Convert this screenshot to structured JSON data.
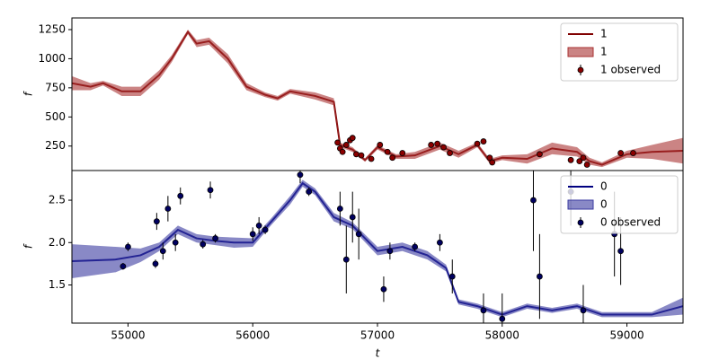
{
  "chart_data": [
    {
      "type": "line",
      "ylabel": "f",
      "xlim": [
        54550,
        59450
      ],
      "ylim": [
        40,
        1350
      ],
      "yticks": [
        250,
        500,
        750,
        1000,
        1250
      ],
      "legend": "upper right",
      "series": [
        {
          "name": "1",
          "color": "#800000",
          "x": [
            54550,
            54700,
            54800,
            54950,
            55100,
            55250,
            55350,
            55480,
            55550,
            55650,
            55800,
            55950,
            56100,
            56200,
            56300,
            56500,
            56650,
            56700,
            56800,
            56900,
            57000,
            57150,
            57300,
            57500,
            57650,
            57800,
            57900,
            58000,
            58200,
            58400,
            58600,
            58700,
            58800,
            59000,
            59200,
            59450
          ],
          "values": [
            790,
            760,
            790,
            720,
            720,
            860,
            1000,
            1230,
            1130,
            1150,
            1000,
            760,
            690,
            660,
            720,
            680,
            630,
            260,
            220,
            130,
            240,
            160,
            170,
            250,
            180,
            260,
            120,
            150,
            140,
            230,
            200,
            120,
            90,
            180,
            200,
            210
          ]
        },
        {
          "name": "1",
          "color": "#a83232",
          "x": [
            54550,
            54700,
            54800,
            54950,
            55100,
            55250,
            55350,
            55480,
            55550,
            55650,
            55800,
            55950,
            56100,
            56200,
            56300,
            56500,
            56650,
            56700,
            56800,
            56900,
            57000,
            57150,
            57300,
            57500,
            57650,
            57800,
            57900,
            58000,
            58200,
            58400,
            58600,
            58700,
            58800,
            59000,
            59200,
            59450
          ],
          "lower": [
            730,
            730,
            770,
            680,
            680,
            820,
            970,
            1210,
            1100,
            1120,
            960,
            730,
            670,
            640,
            700,
            650,
            600,
            240,
            200,
            115,
            220,
            140,
            140,
            220,
            150,
            240,
            100,
            130,
            100,
            180,
            160,
            90,
            70,
            150,
            140,
            100
          ],
          "upper": [
            850,
            790,
            810,
            760,
            760,
            900,
            1030,
            1250,
            1160,
            1180,
            1040,
            790,
            710,
            680,
            740,
            710,
            660,
            280,
            240,
            145,
            260,
            180,
            200,
            280,
            210,
            280,
            140,
            170,
            180,
            280,
            240,
            150,
            110,
            210,
            260,
            320
          ]
        },
        {
          "name": "1 observed",
          "color": "#8b0000",
          "x": [
            56680,
            56700,
            56720,
            56750,
            56780,
            56800,
            56830,
            56870,
            56950,
            57020,
            57080,
            57120,
            57200,
            57430,
            57480,
            57530,
            57580,
            57800,
            57850,
            57900,
            57920,
            58300,
            58550,
            58620,
            58650,
            58680,
            58950,
            59050
          ],
          "values": [
            280,
            230,
            200,
            260,
            300,
            320,
            180,
            170,
            140,
            260,
            200,
            150,
            190,
            260,
            270,
            240,
            190,
            270,
            290,
            150,
            110,
            180,
            130,
            120,
            150,
            90,
            190,
            190
          ],
          "errors": [
            20,
            20,
            20,
            20,
            20,
            20,
            20,
            20,
            20,
            20,
            20,
            20,
            20,
            20,
            20,
            20,
            20,
            20,
            20,
            20,
            20,
            20,
            20,
            20,
            20,
            20,
            20,
            20
          ]
        }
      ]
    },
    {
      "type": "line",
      "ylabel": "f",
      "xlabel": "t",
      "xlim": [
        54550,
        59450
      ],
      "xticks": [
        55000,
        56000,
        57000,
        58000,
        59000
      ],
      "ylim": [
        1.05,
        2.85
      ],
      "yticks": [
        {
          "value": 1.5,
          "label": "1.5"
        },
        {
          "value": 2.0,
          "label": "2.0"
        },
        {
          "value": 2.5,
          "label": "2.5"
        }
      ],
      "legend": "upper right",
      "series": [
        {
          "name": "0",
          "color": "#000080",
          "x": [
            54550,
            54900,
            55100,
            55250,
            55400,
            55550,
            55700,
            55850,
            56000,
            56150,
            56300,
            56400,
            56500,
            56650,
            56800,
            57000,
            57200,
            57400,
            57550,
            57650,
            57800,
            58000,
            58200,
            58400,
            58600,
            58800,
            59000,
            59200,
            59450
          ],
          "values": [
            1.78,
            1.8,
            1.85,
            1.95,
            2.15,
            2.05,
            2.02,
            2.0,
            2.0,
            2.25,
            2.5,
            2.7,
            2.6,
            2.3,
            2.2,
            1.9,
            1.95,
            1.85,
            1.7,
            1.3,
            1.25,
            1.15,
            1.25,
            1.2,
            1.25,
            1.15,
            1.15,
            1.15,
            1.25
          ]
        },
        {
          "name": "0",
          "color": "#3a3aa0",
          "x": [
            54550,
            54900,
            55100,
            55250,
            55400,
            55550,
            55700,
            55850,
            56000,
            56150,
            56300,
            56400,
            56500,
            56650,
            56800,
            57000,
            57200,
            57400,
            57550,
            57650,
            57800,
            58000,
            58200,
            58400,
            58600,
            58800,
            59000,
            59200,
            59450
          ],
          "lower": [
            1.58,
            1.65,
            1.77,
            1.9,
            2.1,
            2.0,
            1.97,
            1.94,
            1.95,
            2.21,
            2.45,
            2.66,
            2.56,
            2.25,
            2.16,
            1.85,
            1.9,
            1.8,
            1.66,
            1.27,
            1.22,
            1.12,
            1.22,
            1.17,
            1.22,
            1.12,
            1.12,
            1.12,
            1.15
          ],
          "upper": [
            1.98,
            1.95,
            1.93,
            2.0,
            2.2,
            2.1,
            2.07,
            2.06,
            2.05,
            2.29,
            2.55,
            2.74,
            2.64,
            2.35,
            2.24,
            1.95,
            2.0,
            1.9,
            1.74,
            1.33,
            1.28,
            1.18,
            1.28,
            1.23,
            1.28,
            1.18,
            1.18,
            1.18,
            1.35
          ]
        },
        {
          "name": "0 observed",
          "color": "#000060",
          "x": [
            54960,
            55000,
            55220,
            55230,
            55280,
            55320,
            55380,
            55420,
            55600,
            55660,
            55700,
            56000,
            56050,
            56100,
            56380,
            56450,
            56700,
            56750,
            56800,
            56850,
            57050,
            57100,
            57300,
            57500,
            57600,
            57850,
            58000,
            58250,
            58300,
            58550,
            58650,
            58900,
            58950
          ],
          "values": [
            1.72,
            1.95,
            1.75,
            2.25,
            1.9,
            2.4,
            2.0,
            2.55,
            1.98,
            2.62,
            2.05,
            2.1,
            2.2,
            2.15,
            2.8,
            2.6,
            2.4,
            1.8,
            2.3,
            2.1,
            1.45,
            1.9,
            1.95,
            2.0,
            1.6,
            1.2,
            1.1,
            2.5,
            1.6,
            2.6,
            1.2,
            2.1,
            1.9
          ],
          "errors": [
            0.04,
            0.05,
            0.05,
            0.1,
            0.1,
            0.15,
            0.1,
            0.1,
            0.05,
            0.1,
            0.05,
            0.08,
            0.1,
            0.05,
            0.1,
            0.05,
            0.2,
            0.4,
            0.3,
            0.3,
            0.15,
            0.1,
            0.05,
            0.1,
            0.2,
            0.2,
            0.3,
            0.6,
            0.5,
            0.4,
            0.3,
            0.5,
            0.4
          ]
        }
      ]
    }
  ]
}
